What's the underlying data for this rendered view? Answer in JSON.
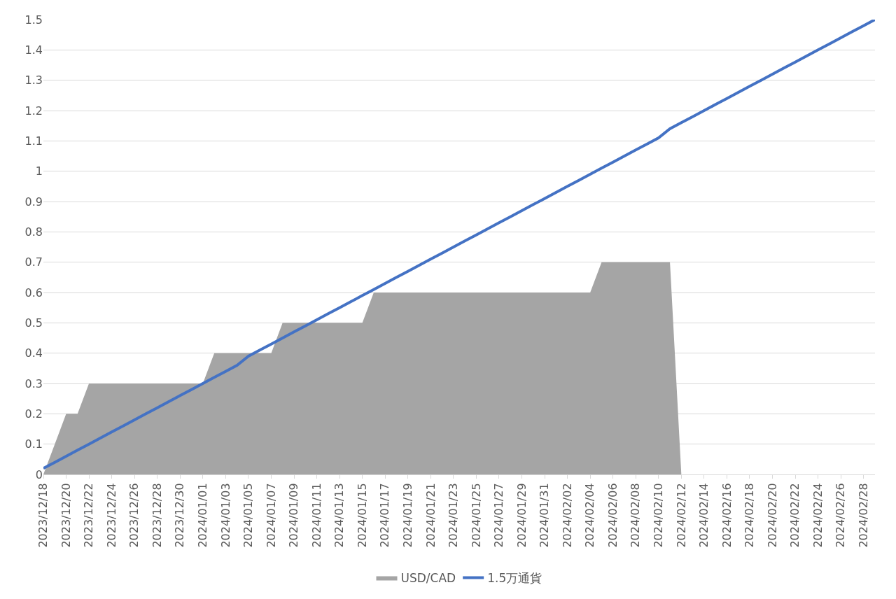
{
  "chart_data": {
    "type": "area",
    "categories": [
      "2023/12/18",
      null,
      "2023/12/20",
      null,
      "2023/12/22",
      null,
      "2023/12/24",
      null,
      "2023/12/26",
      null,
      "2023/12/28",
      null,
      "2023/12/30",
      null,
      "2024/01/01",
      null,
      "2024/01/03",
      null,
      "2024/01/05",
      null,
      "2024/01/07",
      null,
      "2024/01/09",
      null,
      "2024/01/11",
      null,
      "2024/01/13",
      null,
      "2024/01/15",
      null,
      "2024/01/17",
      null,
      "2024/01/19",
      null,
      "2024/01/21",
      null,
      "2024/01/23",
      null,
      "2024/01/25",
      null,
      "2024/01/27",
      null,
      "2024/01/29",
      null,
      "2024/01/31",
      null,
      "2024/02/02",
      null,
      "2024/02/04",
      null,
      "2024/02/06",
      null,
      "2024/02/08",
      null,
      "2024/02/10",
      null,
      "2024/02/12",
      null,
      "2024/02/14",
      null,
      "2024/02/16",
      null,
      "2024/02/18",
      null,
      "2024/02/20",
      null,
      "2024/02/22",
      null,
      "2024/02/24",
      null,
      "2024/02/26",
      null,
      "2024/02/28",
      null
    ],
    "series": [
      {
        "name": "USD/CAD",
        "color": "#a5a5a5",
        "values": [
          0,
          0.1,
          0.2,
          0.2,
          0.3,
          0.3,
          0.3,
          0.3,
          0.3,
          0.3,
          0.3,
          0.3,
          0.3,
          0.3,
          0.3,
          0.4,
          0.4,
          0.4,
          0.4,
          0.4,
          0.4,
          0.5,
          0.5,
          0.5,
          0.5,
          0.5,
          0.5,
          0.5,
          0.5,
          0.6,
          0.6,
          0.6,
          0.6,
          0.6,
          0.6,
          0.6,
          0.6,
          0.6,
          0.6,
          0.6,
          0.6,
          0.6,
          0.6,
          0.6,
          0.6,
          0.6,
          0.6,
          0.6,
          0.6,
          0.7,
          0.7,
          0.7,
          0.7,
          0.7,
          0.7,
          0.7,
          0,
          null,
          null,
          null,
          null,
          null,
          null,
          null,
          null,
          null,
          null,
          null,
          null,
          null,
          null,
          null,
          null,
          null
        ]
      },
      {
        "name": "1.5万通貨",
        "type": "line",
        "color": "#4472c4",
        "values": [
          0.02,
          0.04,
          0.06,
          0.08,
          0.1,
          0.12,
          0.14,
          0.16,
          0.18,
          0.2,
          0.22,
          0.24,
          0.26,
          0.28,
          0.3,
          0.32,
          0.34,
          0.36,
          0.39,
          0.41,
          0.43,
          0.45,
          0.47,
          0.49,
          0.51,
          0.53,
          0.55,
          0.57,
          0.59,
          0.61,
          0.63,
          0.65,
          0.67,
          0.69,
          0.71,
          0.73,
          0.75,
          0.77,
          0.79,
          0.81,
          0.83,
          0.85,
          0.87,
          0.89,
          0.91,
          0.93,
          0.95,
          0.97,
          0.99,
          1.01,
          1.03,
          1.05,
          1.07,
          1.09,
          1.11,
          1.14,
          1.16,
          1.18,
          1.2,
          1.22,
          1.24,
          1.26,
          1.28,
          1.3,
          1.32,
          1.34,
          1.36,
          1.38,
          1.4,
          1.42,
          1.44,
          1.46,
          1.48,
          1.5
        ]
      }
    ],
    "ylim": [
      0,
      1.5
    ],
    "yticks": [
      0,
      0.1,
      0.2,
      0.3,
      0.4,
      0.5,
      0.6,
      0.7,
      0.8,
      0.9,
      1,
      1.1,
      1.2,
      1.3,
      1.4,
      1.5
    ],
    "grid": "y",
    "legend": "bottom"
  }
}
